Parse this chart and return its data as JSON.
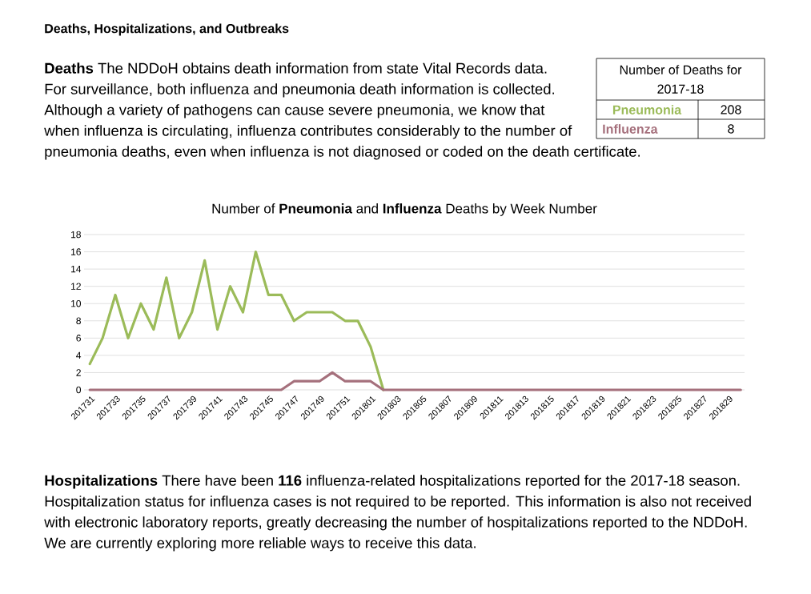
{
  "chart_data": {
    "type": "line",
    "title": "Number of **Pneumonia** and **Influenza** Deaths by Week Number",
    "categories": [
      "201731",
      null,
      "201733",
      null,
      "201735",
      null,
      "201737",
      null,
      "201739",
      null,
      "201741",
      null,
      "201743",
      null,
      "201745",
      null,
      "201747",
      null,
      "201749",
      null,
      "201751",
      null,
      "201801",
      null,
      "201803",
      null,
      "201805",
      null,
      "201807",
      null,
      "201809",
      null,
      "201811",
      null,
      "201813",
      null,
      "201815",
      null,
      "201817",
      null,
      "201819",
      null,
      "201821",
      null,
      "201823",
      null,
      "201825",
      null,
      "201827",
      null,
      "201829",
      null
    ],
    "series": [
      {
        "color": "#9bbb59",
        "values": [
          3,
          6,
          11,
          6,
          10,
          7,
          13,
          6,
          9,
          15,
          7,
          12,
          9,
          16,
          11,
          11,
          8,
          9,
          9,
          9,
          8,
          8,
          5,
          0,
          null,
          null,
          null,
          null,
          null,
          null,
          null,
          null,
          null,
          null,
          null,
          null,
          null,
          null,
          null,
          null,
          null,
          null,
          null,
          null,
          null,
          null,
          null,
          null,
          null,
          null,
          null,
          null
        ]
      },
      {
        "color": "#a5707c",
        "values": [
          0,
          0,
          0,
          0,
          0,
          0,
          0,
          0,
          0,
          0,
          0,
          0,
          0,
          0,
          0,
          0,
          1,
          1,
          1,
          2,
          1,
          1,
          1,
          0,
          0,
          0,
          0,
          0,
          0,
          0,
          0,
          0,
          0,
          0,
          0,
          0,
          0,
          0,
          0,
          0,
          0,
          0,
          0,
          0,
          0,
          0,
          0,
          0,
          0,
          0,
          0,
          0
        ]
      }
    ],
    "ylim": [
      0,
      18
    ],
    "yticks": [
      0,
      2,
      4,
      6,
      8,
      10,
      12,
      14,
      16,
      18
    ],
    "grid": "y",
    "annotations": [
      "Deaths, Hospitalizations, and Outbreaks",
      "**Deaths** The NDDoH obtains death information from state Vital Records data. For surveillance, both influenza and pneumonia death information is collected. Although a variety of pathogens can cause severe pneumonia, we know that when influenza is circulating, influenza contributes considerably to the number of pneumonia deaths, even when influenza is not diagnosed or coded on the death certificate.",
      "Number of Deaths for 2017-18",
      "Pneumonia",
      "208",
      "Influenza",
      "8",
      "**Hospitalizations** There have been **116** influenza-related hospitalizations reported for the 2017-18 season. Hospitalization status for influenza cases is not required to be reported. This information is also not received with electronic laboratory reports, greatly decreasing the number of hospitalizations reported to the NDDoH. We are currently exploring more reliable ways to receive this data."
    ]
  }
}
